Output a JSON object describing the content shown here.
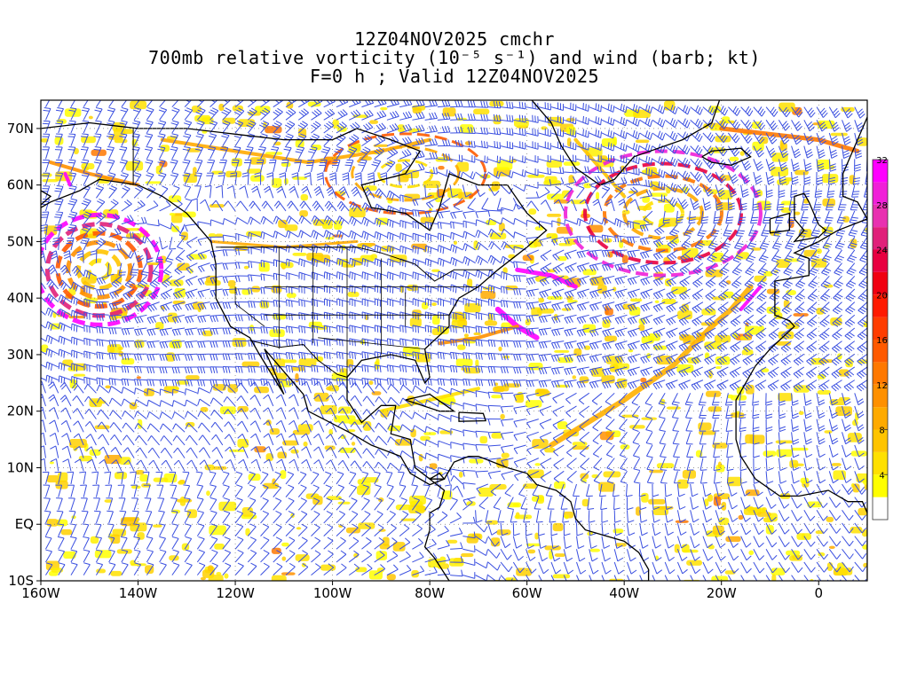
{
  "title": {
    "line1": "12Z04NOV2025 cmchr",
    "line2": "700mb relative vorticity (10⁻⁵ s⁻¹) and wind (barb; kt)",
    "line3": "F=0 h ; Valid 12Z04NOV2025"
  },
  "map": {
    "lon_range": [
      -160,
      10
    ],
    "lat_range": [
      -10,
      75
    ],
    "lat_ticks": [
      "70N",
      "60N",
      "50N",
      "40N",
      "30N",
      "20N",
      "10N",
      "EQ",
      "10S"
    ],
    "lat_values": [
      70,
      60,
      50,
      40,
      30,
      20,
      10,
      0,
      -10
    ],
    "lon_ticks": [
      "160W",
      "140W",
      "120W",
      "100W",
      "80W",
      "60W",
      "40W",
      "20W",
      "0"
    ],
    "lon_values": [
      -160,
      -140,
      -120,
      -100,
      -80,
      -60,
      -40,
      -20,
      0
    ],
    "barb_color": "#3a4fe0",
    "coast_color": "#000000"
  },
  "colorbar": {
    "labels": [
      "4",
      "8",
      "12",
      "16",
      "20",
      "24",
      "28",
      "32"
    ],
    "colors": [
      "#ffffff",
      "#ffff00",
      "#ffe000",
      "#ffc400",
      "#ffaa00",
      "#ff9000",
      "#ff7800",
      "#ff5a00",
      "#ff3c00",
      "#ff1a00",
      "#f00010",
      "#e80040",
      "#e0207a",
      "#e830b0",
      "#f020d8",
      "#ff00ff"
    ]
  }
}
